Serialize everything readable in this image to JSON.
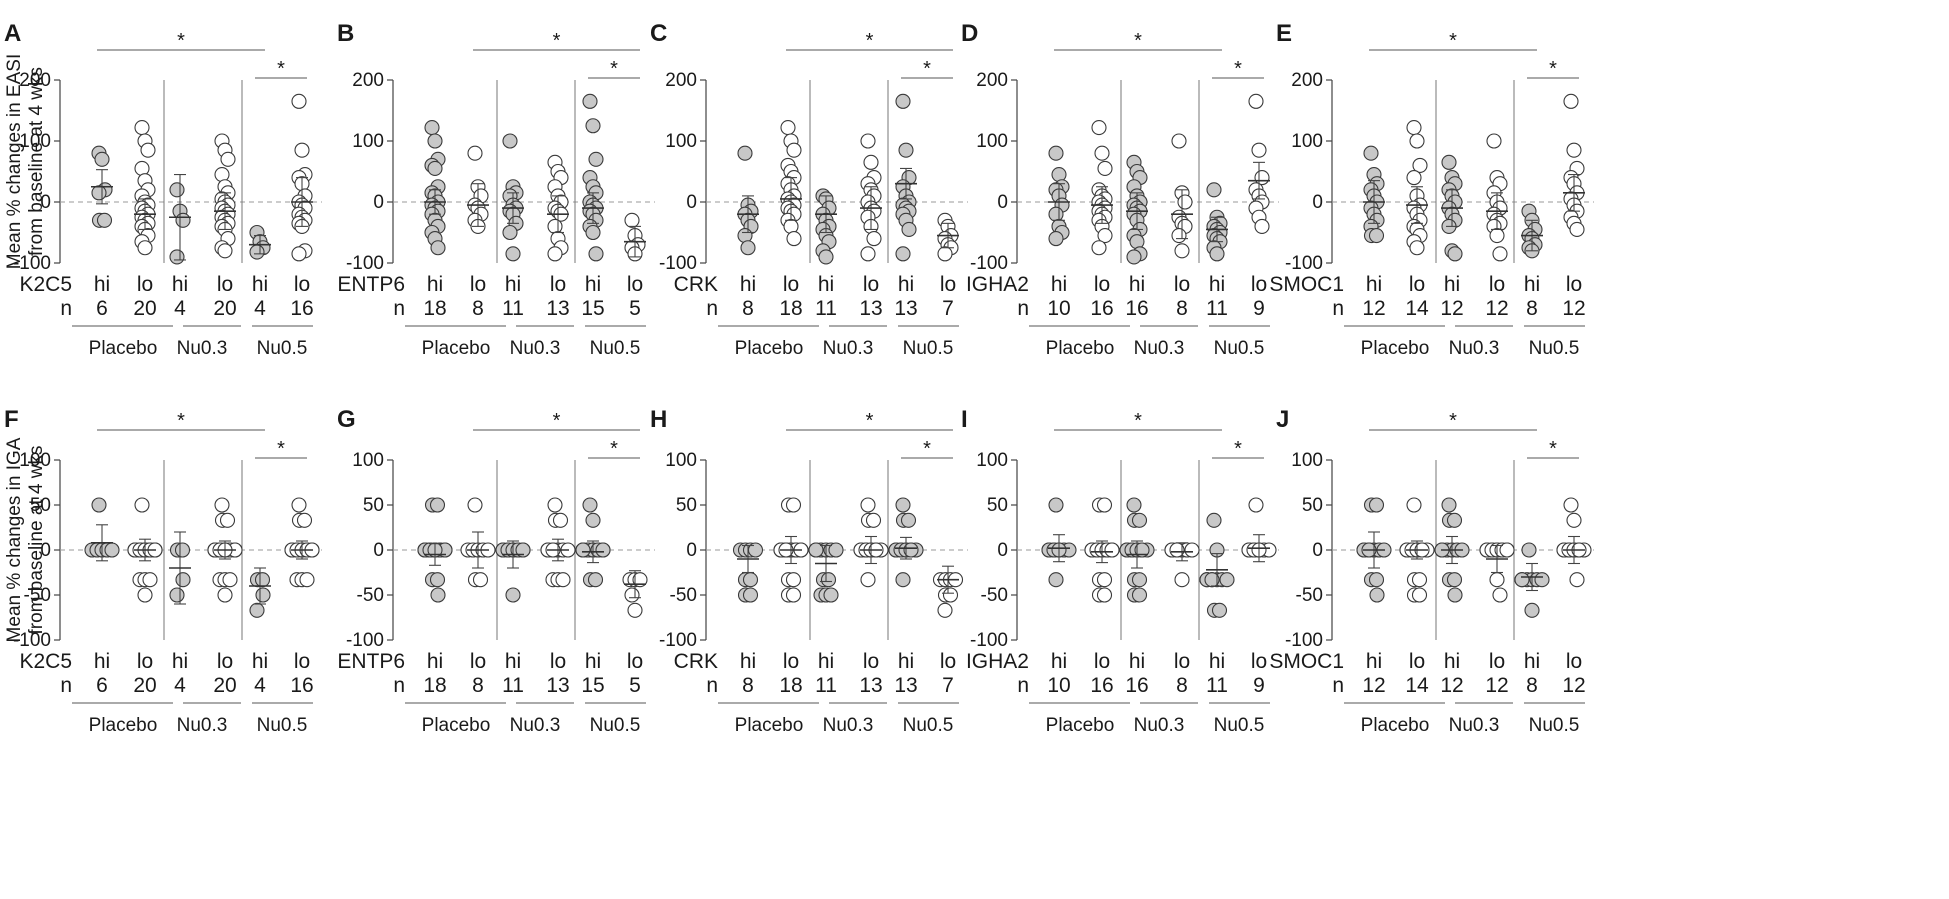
{
  "figure": {
    "ylabel_top": [
      "Mean % changes in EASI",
      "from baseline at 4 wks"
    ],
    "ylabel_bottom": [
      "Mean % changes in IGA",
      "from baseline at 4 wks"
    ],
    "group_labels": [
      "Placebo",
      "Nu0.3",
      "Nu0.5"
    ],
    "category_labels": [
      "hi",
      "lo"
    ],
    "n_label": "n",
    "significance_symbol": "*",
    "colors": {
      "hi_fill": "#c8c8c8",
      "lo_fill": "#ffffff",
      "stroke": "#3a3a3a",
      "zero_line": "#9a9a9a"
    }
  },
  "chart_data": [
    {
      "letter": "A",
      "marker": "K2C5",
      "measure": "EASI",
      "type": "scatter",
      "ylim": [
        -100,
        200
      ],
      "yticks": [
        -100,
        0,
        100,
        200
      ],
      "n": [
        6,
        20,
        4,
        20,
        4,
        16
      ],
      "means": [
        25,
        -20,
        -25,
        -15,
        -70,
        0
      ],
      "sd": [
        28,
        25,
        70,
        30,
        15,
        40
      ],
      "values": [
        [
          80,
          70,
          20,
          15,
          -30,
          -30
        ],
        [
          122,
          100,
          85,
          55,
          35,
          20,
          10,
          0,
          -5,
          -10,
          -15,
          -20,
          -25,
          -30,
          -35,
          -40,
          -45,
          -55,
          -65,
          -75
        ],
        [
          20,
          -15,
          -30,
          -90
        ],
        [
          100,
          85,
          70,
          45,
          25,
          15,
          5,
          0,
          -5,
          -10,
          -15,
          -20,
          -25,
          -30,
          -35,
          -40,
          -45,
          -60,
          -75,
          -80
        ],
        [
          -50,
          -65,
          -75,
          -82
        ],
        [
          165,
          85,
          45,
          40,
          30,
          10,
          0,
          -5,
          -10,
          -20,
          -25,
          -30,
          -35,
          -40,
          -80,
          -85
        ]
      ],
      "sig": [
        {
          "from": 0,
          "to": 4,
          "label": "*"
        },
        {
          "from": 4,
          "to": 5,
          "label": "*"
        }
      ]
    },
    {
      "letter": "B",
      "marker": "ENTP6",
      "measure": "EASI",
      "type": "scatter",
      "ylim": [
        -100,
        200
      ],
      "yticks": [
        -100,
        0,
        100,
        200
      ],
      "n": [
        18,
        8,
        11,
        13,
        15,
        5
      ],
      "means": [
        0,
        -5,
        -10,
        -20,
        -10,
        -65
      ],
      "sd": [
        20,
        35,
        25,
        30,
        25,
        25
      ],
      "values": [
        [
          122,
          100,
          70,
          60,
          55,
          25,
          15,
          10,
          0,
          -5,
          -10,
          -15,
          -20,
          -30,
          -40,
          -50,
          -60,
          -75
        ],
        [
          80,
          25,
          10,
          -5,
          -10,
          -20,
          -30,
          -40
        ],
        [
          100,
          25,
          15,
          10,
          -5,
          -10,
          -15,
          -20,
          -35,
          -50,
          -85
        ],
        [
          65,
          50,
          40,
          25,
          10,
          0,
          -10,
          -15,
          -20,
          -40,
          -60,
          -75,
          -85
        ],
        [
          165,
          125,
          70,
          40,
          25,
          15,
          0,
          -5,
          -10,
          -15,
          -20,
          -30,
          -40,
          -50,
          -85
        ],
        [
          -30,
          -55,
          -70,
          -75,
          -85
        ]
      ],
      "sig": [
        {
          "from": 1,
          "to": 5,
          "label": "*"
        },
        {
          "from": 4,
          "to": 5,
          "label": "*"
        }
      ]
    },
    {
      "letter": "C",
      "marker": "CRK",
      "measure": "EASI",
      "type": "scatter",
      "ylim": [
        -100,
        200
      ],
      "yticks": [
        -100,
        0,
        100,
        200
      ],
      "n": [
        8,
        18,
        11,
        13,
        13,
        7
      ],
      "means": [
        -20,
        5,
        -20,
        -10,
        30,
        -55
      ],
      "sd": [
        30,
        35,
        30,
        35,
        25,
        20
      ],
      "values": [
        [
          80,
          -5,
          -15,
          -20,
          -30,
          -40,
          -55,
          -75
        ],
        [
          122,
          100,
          85,
          60,
          50,
          40,
          30,
          20,
          10,
          5,
          0,
          -5,
          -10,
          -15,
          -20,
          -30,
          -40,
          -60
        ],
        [
          10,
          5,
          -10,
          -20,
          -30,
          -40,
          -45,
          -55,
          -65,
          -80,
          -90
        ],
        [
          100,
          65,
          40,
          30,
          20,
          10,
          0,
          -10,
          -15,
          -25,
          -40,
          -60,
          -85
        ],
        [
          165,
          85,
          40,
          25,
          10,
          0,
          -5,
          -10,
          -15,
          -20,
          -30,
          -45,
          -85
        ],
        [
          -30,
          -40,
          -55,
          -60,
          -70,
          -75,
          -85
        ]
      ],
      "sig": [
        {
          "from": 1,
          "to": 5,
          "label": "*"
        },
        {
          "from": 4,
          "to": 5,
          "label": "*"
        }
      ]
    },
    {
      "letter": "D",
      "marker": "IGHA2",
      "measure": "EASI",
      "type": "scatter",
      "ylim": [
        -100,
        200
      ],
      "yticks": [
        -100,
        0,
        100,
        200
      ],
      "n": [
        10,
        16,
        16,
        8,
        11,
        9
      ],
      "means": [
        0,
        -5,
        -15,
        -20,
        -45,
        35
      ],
      "sd": [
        30,
        30,
        30,
        40,
        20,
        30
      ],
      "values": [
        [
          80,
          45,
          25,
          20,
          10,
          -5,
          -20,
          -40,
          -50,
          -60
        ],
        [
          122,
          80,
          55,
          20,
          10,
          5,
          0,
          -5,
          -10,
          -15,
          -20,
          -25,
          -30,
          -40,
          -55,
          -75
        ],
        [
          65,
          50,
          40,
          25,
          10,
          0,
          -5,
          -10,
          -15,
          -20,
          -30,
          -45,
          -55,
          -65,
          -85,
          -90
        ],
        [
          100,
          15,
          0,
          -25,
          -35,
          -40,
          -55,
          -80
        ],
        [
          20,
          -25,
          -35,
          -40,
          -45,
          -50,
          -55,
          -60,
          -65,
          -75,
          -85
        ],
        [
          165,
          85,
          40,
          20,
          10,
          0,
          -10,
          -25,
          -40
        ]
      ],
      "sig": [
        {
          "from": 0,
          "to": 4,
          "label": "*"
        },
        {
          "from": 4,
          "to": 5,
          "label": "*"
        }
      ]
    },
    {
      "letter": "E",
      "marker": "SMOC1",
      "measure": "EASI",
      "type": "scatter",
      "ylim": [
        -100,
        200
      ],
      "yticks": [
        -100,
        0,
        100,
        200
      ],
      "n": [
        12,
        14,
        12,
        12,
        8,
        12
      ],
      "means": [
        0,
        -5,
        -10,
        -15,
        -55,
        15
      ],
      "sd": [
        35,
        30,
        30,
        30,
        25,
        30
      ],
      "values": [
        [
          80,
          45,
          30,
          20,
          10,
          0,
          -10,
          -20,
          -30,
          -40,
          -55,
          -55
        ],
        [
          122,
          100,
          60,
          40,
          10,
          -5,
          -10,
          -20,
          -30,
          -40,
          -45,
          -55,
          -65,
          -75
        ],
        [
          65,
          40,
          30,
          20,
          10,
          0,
          -10,
          -20,
          -30,
          -40,
          -80,
          -85
        ],
        [
          100,
          40,
          30,
          15,
          0,
          -10,
          -20,
          -30,
          -35,
          -40,
          -55,
          -85
        ],
        [
          -15,
          -30,
          -45,
          -55,
          -60,
          -70,
          -75,
          -80
        ],
        [
          165,
          85,
          55,
          40,
          30,
          15,
          5,
          -5,
          -15,
          -25,
          -35,
          -45
        ]
      ],
      "sig": [
        {
          "from": 0,
          "to": 4,
          "label": "*"
        },
        {
          "from": 4,
          "to": 5,
          "label": "*"
        }
      ]
    },
    {
      "letter": "F",
      "marker": "K2C5",
      "measure": "IGA",
      "type": "scatter",
      "ylim": [
        -100,
        100
      ],
      "yticks": [
        -100,
        -50,
        0,
        50,
        100
      ],
      "n": [
        6,
        20,
        4,
        20,
        4,
        16
      ],
      "means": [
        8,
        0,
        -20,
        0,
        -40,
        0
      ],
      "sd": [
        20,
        12,
        40,
        10,
        20,
        10
      ],
      "values": [
        [
          50,
          0,
          0,
          0,
          0,
          0
        ],
        [
          50,
          0,
          0,
          0,
          0,
          0,
          0,
          0,
          0,
          0,
          0,
          0,
          0,
          0,
          0,
          0,
          -33,
          -33,
          -33,
          -50
        ],
        [
          0,
          0,
          -33,
          -50
        ],
        [
          50,
          33,
          33,
          0,
          0,
          0,
          0,
          0,
          0,
          0,
          0,
          0,
          0,
          0,
          0,
          0,
          -33,
          -33,
          -33,
          -50
        ],
        [
          -33,
          -33,
          -50,
          -67
        ],
        [
          50,
          33,
          33,
          0,
          0,
          0,
          0,
          0,
          0,
          0,
          0,
          0,
          0,
          -33,
          -33,
          -33
        ]
      ],
      "sig": [
        {
          "from": 0,
          "to": 4,
          "label": "*"
        },
        {
          "from": 4,
          "to": 5,
          "label": "*"
        }
      ]
    },
    {
      "letter": "G",
      "marker": "ENTP6",
      "measure": "IGA",
      "type": "scatter",
      "ylim": [
        -100,
        100
      ],
      "yticks": [
        -100,
        -50,
        0,
        50,
        100
      ],
      "n": [
        18,
        8,
        11,
        13,
        15,
        5
      ],
      "means": [
        -5,
        0,
        -5,
        0,
        -2,
        -38
      ],
      "sd": [
        12,
        20,
        15,
        12,
        12,
        15
      ],
      "values": [
        [
          50,
          50,
          0,
          0,
          0,
          0,
          0,
          0,
          0,
          0,
          0,
          0,
          0,
          0,
          0,
          -33,
          -33,
          -50
        ],
        [
          50,
          0,
          0,
          0,
          0,
          0,
          -33,
          -33
        ],
        [
          0,
          0,
          0,
          0,
          0,
          0,
          0,
          0,
          0,
          0,
          -50
        ],
        [
          50,
          33,
          33,
          0,
          0,
          0,
          0,
          0,
          0,
          0,
          -33,
          -33,
          -33
        ],
        [
          50,
          33,
          0,
          0,
          0,
          0,
          0,
          0,
          0,
          0,
          0,
          0,
          0,
          -33,
          -33
        ],
        [
          -33,
          -33,
          -33,
          -50,
          -67
        ]
      ],
      "sig": [
        {
          "from": 1,
          "to": 5,
          "label": "*"
        },
        {
          "from": 4,
          "to": 5,
          "label": "*"
        }
      ]
    },
    {
      "letter": "H",
      "marker": "CRK",
      "measure": "IGA",
      "type": "scatter",
      "ylim": [
        -100,
        100
      ],
      "yticks": [
        -100,
        -50,
        0,
        50,
        100
      ],
      "n": [
        8,
        18,
        11,
        13,
        13,
        7
      ],
      "means": [
        -10,
        0,
        -15,
        0,
        2,
        -33
      ],
      "sd": [
        15,
        15,
        20,
        15,
        12,
        15
      ],
      "values": [
        [
          0,
          0,
          0,
          0,
          -33,
          -33,
          -50,
          -50
        ],
        [
          50,
          50,
          0,
          0,
          0,
          0,
          0,
          0,
          0,
          0,
          0,
          0,
          0,
          0,
          -33,
          -33,
          -50,
          -50
        ],
        [
          0,
          0,
          0,
          0,
          0,
          0,
          -33,
          -33,
          -50,
          -50,
          -50
        ],
        [
          50,
          33,
          33,
          0,
          0,
          0,
          0,
          0,
          0,
          0,
          0,
          0,
          -33
        ],
        [
          50,
          33,
          33,
          0,
          0,
          0,
          0,
          0,
          0,
          0,
          0,
          0,
          -33
        ],
        [
          -33,
          -33,
          -33,
          -33,
          -50,
          -50,
          -67
        ]
      ],
      "sig": [
        {
          "from": 1,
          "to": 5,
          "label": "*"
        },
        {
          "from": 4,
          "to": 5,
          "label": "*"
        }
      ]
    },
    {
      "letter": "I",
      "marker": "IGHA2",
      "measure": "IGA",
      "type": "scatter",
      "ylim": [
        -100,
        100
      ],
      "yticks": [
        -100,
        -50,
        0,
        50,
        100
      ],
      "n": [
        10,
        16,
        16,
        8,
        11,
        9
      ],
      "means": [
        2,
        -2,
        -5,
        -2,
        -22,
        2
      ],
      "sd": [
        15,
        12,
        15,
        10,
        18,
        15
      ],
      "values": [
        [
          50,
          0,
          0,
          0,
          0,
          0,
          0,
          0,
          0,
          -33
        ],
        [
          50,
          50,
          0,
          0,
          0,
          0,
          0,
          0,
          0,
          0,
          0,
          0,
          -33,
          -33,
          -50,
          -50
        ],
        [
          50,
          33,
          33,
          0,
          0,
          0,
          0,
          0,
          0,
          0,
          0,
          0,
          -33,
          -33,
          -50,
          -50
        ],
        [
          0,
          0,
          0,
          0,
          0,
          0,
          0,
          -33
        ],
        [
          33,
          0,
          -33,
          -33,
          -33,
          -33,
          -33,
          -33,
          -33,
          -67,
          -67
        ],
        [
          50,
          0,
          0,
          0,
          0,
          0,
          0,
          0,
          0
        ]
      ],
      "sig": [
        {
          "from": 0,
          "to": 4,
          "label": "*"
        },
        {
          "from": 4,
          "to": 5,
          "label": "*"
        }
      ]
    },
    {
      "letter": "J",
      "marker": "SMOC1",
      "measure": "IGA",
      "type": "scatter",
      "ylim": [
        -100,
        100
      ],
      "yticks": [
        -100,
        -50,
        0,
        50,
        100
      ],
      "n": [
        12,
        14,
        12,
        12,
        8,
        12
      ],
      "means": [
        0,
        0,
        0,
        -10,
        -30,
        0
      ],
      "sd": [
        20,
        10,
        15,
        15,
        15,
        15
      ],
      "values": [
        [
          50,
          50,
          0,
          0,
          0,
          0,
          0,
          0,
          0,
          -33,
          -33,
          -50
        ],
        [
          50,
          0,
          0,
          0,
          0,
          0,
          0,
          0,
          0,
          0,
          -33,
          -33,
          -50,
          -50
        ],
        [
          50,
          33,
          33,
          0,
          0,
          0,
          0,
          0,
          0,
          -33,
          -33,
          -50
        ],
        [
          0,
          0,
          0,
          0,
          0,
          0,
          0,
          0,
          0,
          0,
          -33,
          -50
        ],
        [
          0,
          -33,
          -33,
          -33,
          -33,
          -33,
          -33,
          -67
        ],
        [
          50,
          33,
          0,
          0,
          0,
          0,
          0,
          0,
          0,
          0,
          0,
          -33
        ]
      ],
      "sig": [
        {
          "from": 0,
          "to": 4,
          "label": "*"
        },
        {
          "from": 4,
          "to": 5,
          "label": "*"
        }
      ]
    }
  ]
}
